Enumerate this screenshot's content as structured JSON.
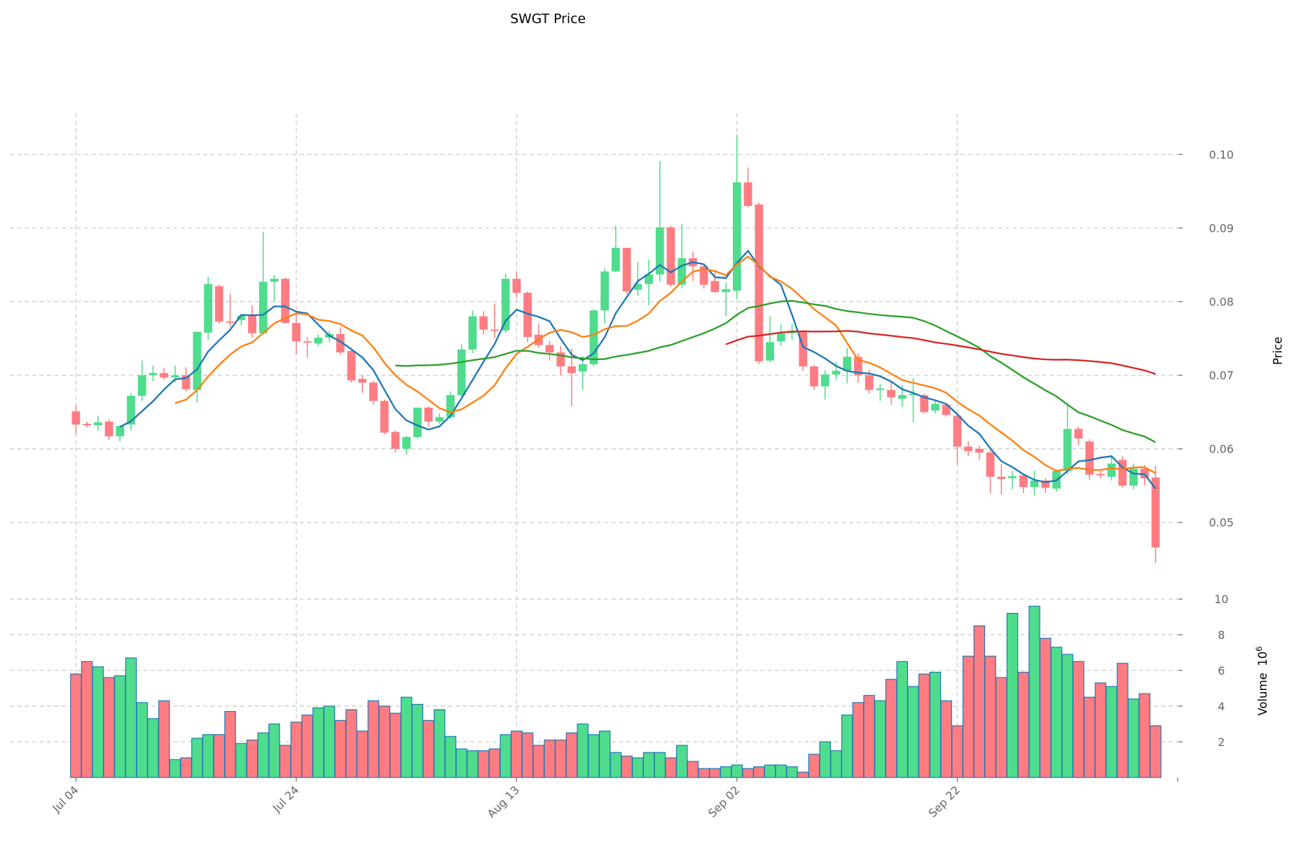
{
  "chart_data": {
    "type": "candlestick",
    "title": "SWGT Price",
    "ylabel": "Price",
    "volume_label": "Volume",
    "volume_exponent": "10",
    "volume_exponent_power": "6",
    "ylim": [
      0.0408,
      0.1056
    ],
    "volume_ylim": [
      0,
      10.5
    ],
    "price_ticks": [
      "0.05",
      "0.06",
      "0.07",
      "0.08",
      "0.09",
      "0.10"
    ],
    "volume_ticks": [
      "2",
      "4",
      "6",
      "8",
      "10"
    ],
    "x_tick_labels": [
      {
        "index": 0,
        "label": "Jul 04"
      },
      {
        "index": 20,
        "label": "Jul 24"
      },
      {
        "index": 40,
        "label": "Aug 13"
      },
      {
        "index": 60,
        "label": "Sep 02"
      },
      {
        "index": 80,
        "label": "Sep 22"
      }
    ],
    "grid": true,
    "colors": {
      "up": "#4fdc8c",
      "down": "#ff7c82",
      "volume_edge": "#1f77b4"
    },
    "moving_averages": [
      {
        "window": 5,
        "color": "#1f77b4"
      },
      {
        "window": 10,
        "color": "#ff7f0e"
      },
      {
        "window": 30,
        "color": "#2ca02c"
      },
      {
        "window": 60,
        "color": "#d62728"
      }
    ],
    "ohlc": [
      [
        0.0651,
        0.066,
        0.062,
        0.0633
      ],
      [
        0.0634,
        0.0637,
        0.0629,
        0.0632
      ],
      [
        0.0632,
        0.0645,
        0.0625,
        0.0636
      ],
      [
        0.0637,
        0.064,
        0.0612,
        0.0617
      ],
      [
        0.0617,
        0.0632,
        0.061,
        0.0631
      ],
      [
        0.0633,
        0.0676,
        0.0625,
        0.0672
      ],
      [
        0.0672,
        0.072,
        0.0665,
        0.07
      ],
      [
        0.07,
        0.0713,
        0.0692,
        0.0703
      ],
      [
        0.0703,
        0.071,
        0.0694,
        0.0697
      ],
      [
        0.0697,
        0.0713,
        0.069,
        0.07
      ],
      [
        0.07,
        0.0711,
        0.0678,
        0.0681
      ],
      [
        0.068,
        0.0759,
        0.0663,
        0.0759
      ],
      [
        0.0758,
        0.0834,
        0.0748,
        0.0824
      ],
      [
        0.0821,
        0.0823,
        0.077,
        0.0773
      ],
      [
        0.0773,
        0.081,
        0.0765,
        0.0772
      ],
      [
        0.0775,
        0.0783,
        0.0768,
        0.0781
      ],
      [
        0.0781,
        0.0795,
        0.0751,
        0.0757
      ],
      [
        0.0757,
        0.0895,
        0.0757,
        0.0827
      ],
      [
        0.0827,
        0.0836,
        0.08,
        0.0831
      ],
      [
        0.0831,
        0.0833,
        0.077,
        0.0771
      ],
      [
        0.0771,
        0.0785,
        0.0728,
        0.0746
      ],
      [
        0.0746,
        0.0752,
        0.0724,
        0.0745
      ],
      [
        0.0743,
        0.0755,
        0.074,
        0.0751
      ],
      [
        0.0751,
        0.076,
        0.0745,
        0.0756
      ],
      [
        0.0756,
        0.0765,
        0.0728,
        0.0731
      ],
      [
        0.0733,
        0.0735,
        0.069,
        0.0693
      ],
      [
        0.0695,
        0.07,
        0.0676,
        0.069
      ],
      [
        0.069,
        0.0692,
        0.066,
        0.0665
      ],
      [
        0.0665,
        0.0667,
        0.062,
        0.0622
      ],
      [
        0.0623,
        0.0625,
        0.0595,
        0.06
      ],
      [
        0.06,
        0.0618,
        0.0592,
        0.0616
      ],
      [
        0.0616,
        0.0656,
        0.0614,
        0.0656
      ],
      [
        0.0656,
        0.0658,
        0.063,
        0.0637
      ],
      [
        0.0637,
        0.0648,
        0.0634,
        0.0643
      ],
      [
        0.0643,
        0.0678,
        0.064,
        0.0673
      ],
      [
        0.0673,
        0.0742,
        0.067,
        0.0735
      ],
      [
        0.0735,
        0.0788,
        0.073,
        0.078
      ],
      [
        0.078,
        0.0787,
        0.0755,
        0.0762
      ],
      [
        0.0762,
        0.0797,
        0.075,
        0.0761
      ],
      [
        0.0761,
        0.0838,
        0.0758,
        0.0831
      ],
      [
        0.0831,
        0.084,
        0.0805,
        0.0812
      ],
      [
        0.0812,
        0.0814,
        0.0745,
        0.0752
      ],
      [
        0.0755,
        0.077,
        0.0738,
        0.0741
      ],
      [
        0.0741,
        0.0747,
        0.072,
        0.0731
      ],
      [
        0.0731,
        0.074,
        0.07,
        0.0712
      ],
      [
        0.0712,
        0.0736,
        0.0658,
        0.0703
      ],
      [
        0.0705,
        0.0726,
        0.068,
        0.0715
      ],
      [
        0.0715,
        0.079,
        0.0712,
        0.0788
      ],
      [
        0.0788,
        0.0845,
        0.077,
        0.0841
      ],
      [
        0.0841,
        0.0903,
        0.084,
        0.0873
      ],
      [
        0.0873,
        0.0873,
        0.081,
        0.0814
      ],
      [
        0.0816,
        0.0854,
        0.0808,
        0.0824
      ],
      [
        0.0824,
        0.0857,
        0.0795,
        0.0837
      ],
      [
        0.0837,
        0.0991,
        0.0827,
        0.0901
      ],
      [
        0.0901,
        0.0903,
        0.082,
        0.0823
      ],
      [
        0.0823,
        0.0905,
        0.0818,
        0.0859
      ],
      [
        0.0859,
        0.0868,
        0.0828,
        0.0848
      ],
      [
        0.0848,
        0.0851,
        0.0818,
        0.0823
      ],
      [
        0.0828,
        0.084,
        0.0812,
        0.0813
      ],
      [
        0.0813,
        0.0826,
        0.078,
        0.0817
      ],
      [
        0.0815,
        0.1027,
        0.0804,
        0.0962
      ],
      [
        0.0962,
        0.0982,
        0.0928,
        0.093
      ],
      [
        0.0932,
        0.0935,
        0.0715,
        0.0719
      ],
      [
        0.072,
        0.078,
        0.0718,
        0.0745
      ],
      [
        0.0746,
        0.0769,
        0.074,
        0.0757
      ],
      [
        0.0757,
        0.077,
        0.0748,
        0.0759
      ],
      [
        0.0759,
        0.0761,
        0.0706,
        0.0712
      ],
      [
        0.0712,
        0.0714,
        0.068,
        0.0685
      ],
      [
        0.0685,
        0.0707,
        0.0667,
        0.0701
      ],
      [
        0.0701,
        0.0718,
        0.0694,
        0.0706
      ],
      [
        0.0706,
        0.0737,
        0.0689,
        0.0725
      ],
      [
        0.0725,
        0.073,
        0.069,
        0.07
      ],
      [
        0.07,
        0.0708,
        0.0675,
        0.068
      ],
      [
        0.068,
        0.0688,
        0.0665,
        0.0682
      ],
      [
        0.068,
        0.069,
        0.066,
        0.067
      ],
      [
        0.0668,
        0.0686,
        0.0657,
        0.0673
      ],
      [
        0.0673,
        0.0696,
        0.0636,
        0.0675
      ],
      [
        0.0673,
        0.0675,
        0.0648,
        0.065
      ],
      [
        0.0652,
        0.0665,
        0.0648,
        0.0661
      ],
      [
        0.066,
        0.0662,
        0.0644,
        0.0646
      ],
      [
        0.0645,
        0.0647,
        0.0578,
        0.0603
      ],
      [
        0.0603,
        0.061,
        0.059,
        0.0597
      ],
      [
        0.06,
        0.0605,
        0.0585,
        0.0595
      ],
      [
        0.0595,
        0.0598,
        0.054,
        0.0562
      ],
      [
        0.0562,
        0.058,
        0.0538,
        0.0559
      ],
      [
        0.056,
        0.057,
        0.0545,
        0.0563
      ],
      [
        0.0564,
        0.0566,
        0.054,
        0.0548
      ],
      [
        0.0548,
        0.057,
        0.0537,
        0.0557
      ],
      [
        0.0557,
        0.056,
        0.054,
        0.0547
      ],
      [
        0.0546,
        0.0572,
        0.0542,
        0.057
      ],
      [
        0.057,
        0.066,
        0.0565,
        0.0627
      ],
      [
        0.0627,
        0.063,
        0.0605,
        0.0614
      ],
      [
        0.061,
        0.0613,
        0.0558,
        0.0565
      ],
      [
        0.0566,
        0.057,
        0.056,
        0.0564
      ],
      [
        0.0562,
        0.059,
        0.0557,
        0.058
      ],
      [
        0.0585,
        0.059,
        0.0547,
        0.055
      ],
      [
        0.055,
        0.058,
        0.0545,
        0.0573
      ],
      [
        0.0573,
        0.0578,
        0.055,
        0.056
      ],
      [
        0.0561,
        0.0577,
        0.0445,
        0.0466
      ]
    ],
    "volume": [
      5.8,
      6.5,
      6.2,
      5.6,
      5.7,
      6.7,
      4.2,
      3.3,
      4.3,
      1.0,
      1.1,
      2.2,
      2.4,
      2.4,
      3.7,
      1.9,
      2.1,
      2.5,
      3.0,
      1.8,
      3.1,
      3.5,
      3.9,
      4.0,
      3.2,
      3.8,
      2.6,
      4.3,
      4.0,
      3.6,
      4.5,
      4.1,
      3.2,
      3.8,
      2.3,
      1.6,
      1.5,
      1.5,
      1.6,
      2.4,
      2.6,
      2.5,
      1.8,
      2.1,
      2.1,
      2.5,
      3.0,
      2.4,
      2.6,
      1.4,
      1.2,
      1.1,
      1.4,
      1.4,
      1.1,
      1.8,
      0.9,
      0.5,
      0.5,
      0.6,
      0.7,
      0.5,
      0.6,
      0.7,
      0.7,
      0.6,
      0.3,
      1.3,
      2.0,
      1.5,
      3.5,
      4.2,
      4.6,
      4.3,
      5.5,
      6.5,
      5.1,
      5.8,
      5.9,
      4.3,
      2.9,
      6.8,
      8.5,
      6.8,
      5.6,
      9.2,
      5.9,
      9.6,
      7.8,
      7.3,
      6.9,
      6.5,
      4.5,
      5.3,
      5.1,
      6.4,
      4.4,
      4.7,
      2.9
    ]
  }
}
